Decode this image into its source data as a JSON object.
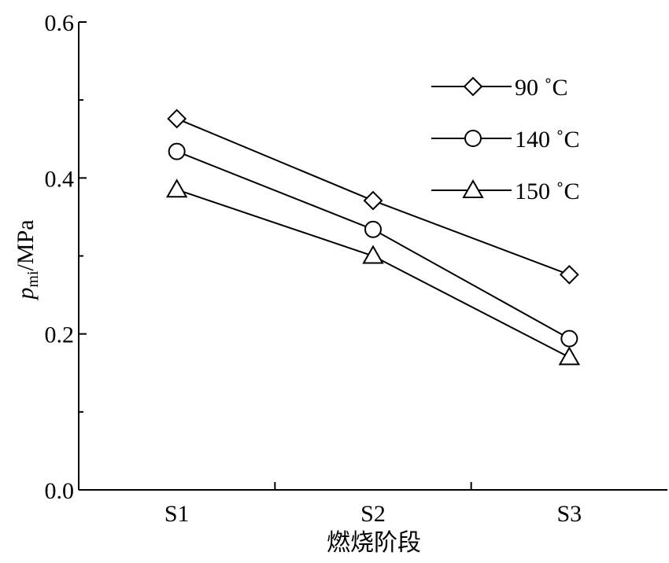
{
  "chart_data": {
    "type": "line",
    "categories": [
      "S1",
      "S2",
      "S3"
    ],
    "xlabel": "燃烧阶段",
    "ylabel_main": "p",
    "ylabel_sub": "mi",
    "ylabel_unit": "/MPa",
    "ylim": [
      0.0,
      0.6
    ],
    "yticks": [
      "0.0",
      "0.2",
      "0.4",
      "0.6"
    ],
    "grid": false,
    "legend_position": "top-right",
    "series": [
      {
        "name": "90 ˚C",
        "marker": "diamond",
        "values": [
          0.476,
          0.371,
          0.276
        ]
      },
      {
        "name": "140 ˚C",
        "marker": "circle",
        "values": [
          0.434,
          0.334,
          0.194
        ]
      },
      {
        "name": "150 ˚C",
        "marker": "triangle",
        "values": [
          0.385,
          0.3,
          0.17
        ]
      }
    ]
  }
}
